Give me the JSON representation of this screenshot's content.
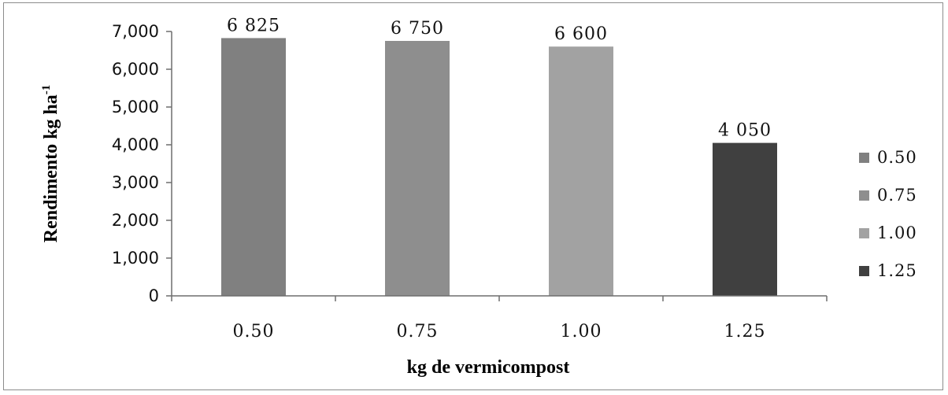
{
  "chart_data": {
    "type": "bar",
    "categories": [
      "0.50",
      "0.75",
      "1.00",
      "1.25"
    ],
    "values": [
      6825,
      6750,
      6600,
      4050
    ],
    "data_labels": [
      "6 825",
      "6 750",
      "6 600",
      "4 050"
    ],
    "colors": [
      "#808080",
      "#8e8e8e",
      "#a2a2a2",
      "#404040"
    ],
    "xlabel": "kg de vermicompost",
    "ylabel": "Rendimento kg ha",
    "ylabel_sup": "-1",
    "ylim": [
      0,
      7000
    ],
    "yticks": [
      0,
      1000,
      2000,
      3000,
      4000,
      5000,
      6000,
      7000
    ],
    "ytick_labels": [
      "0",
      "1,000",
      "2,000",
      "3,000",
      "4,000",
      "5,000",
      "6,000",
      "7,000"
    ],
    "grid": false,
    "legend": {
      "placement": "right",
      "entries": [
        "0.50",
        "0.75",
        "1.00",
        "1.25"
      ]
    }
  }
}
